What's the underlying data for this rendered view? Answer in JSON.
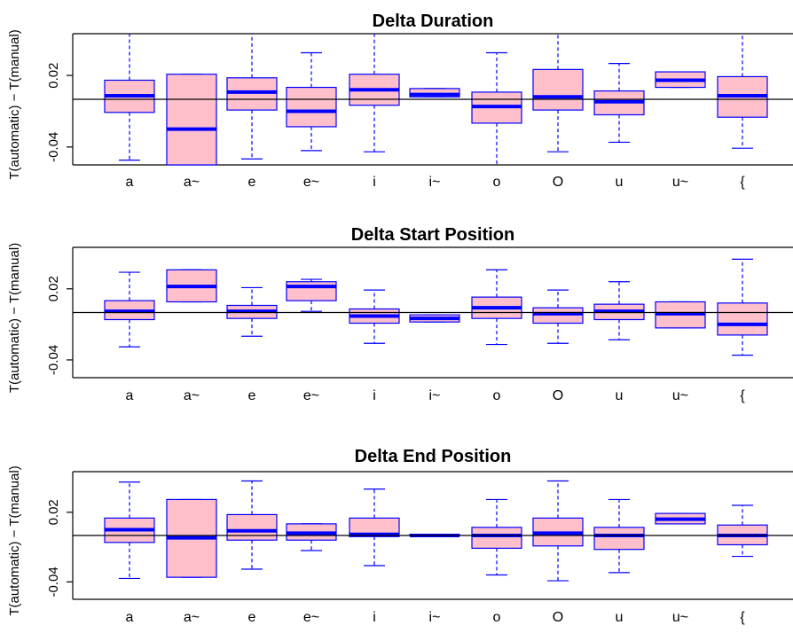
{
  "chart_data": [
    {
      "type": "boxplot",
      "title": "Delta Duration",
      "ylabel": "T(automatic) − T(manual)",
      "ylim": [
        -0.055,
        0.055
      ],
      "yticks": [
        -0.04,
        0.02
      ],
      "ytick_labels": [
        "-0.04",
        "0.02"
      ],
      "reference_line": 0,
      "colors": {
        "box_fill": "#ffc0cb",
        "box_stroke": "#0000ff",
        "median": "#0000ff"
      },
      "categories": [
        "a",
        "a~",
        "e",
        "e~",
        "i",
        "i~",
        "o",
        "O",
        "u",
        "u~",
        "{"
      ],
      "boxes": [
        {
          "whisker_low": -0.051,
          "q1": -0.011,
          "median": 0.003,
          "q3": 0.016,
          "whisker_high": 0.055
        },
        {
          "whisker_low": -0.055,
          "q1": -0.055,
          "median": -0.025,
          "q3": 0.021,
          "whisker_high": 0.021
        },
        {
          "whisker_low": -0.05,
          "q1": -0.009,
          "median": 0.006,
          "q3": 0.018,
          "whisker_high": 0.055
        },
        {
          "whisker_low": -0.043,
          "q1": -0.023,
          "median": -0.01,
          "q3": 0.01,
          "whisker_high": 0.039
        },
        {
          "whisker_low": -0.044,
          "q1": -0.005,
          "median": 0.008,
          "q3": 0.021,
          "whisker_high": 0.055
        },
        {
          "whisker_low": 0.002,
          "q1": 0.002,
          "median": 0.004,
          "q3": 0.009,
          "whisker_high": 0.009
        },
        {
          "whisker_low": -0.055,
          "q1": -0.02,
          "median": -0.006,
          "q3": 0.006,
          "whisker_high": 0.039
        },
        {
          "whisker_low": -0.044,
          "q1": -0.009,
          "median": 0.002,
          "q3": 0.025,
          "whisker_high": 0.055
        },
        {
          "whisker_low": -0.036,
          "q1": -0.013,
          "median": -0.002,
          "q3": 0.007,
          "whisker_high": 0.03
        },
        {
          "whisker_low": 0.01,
          "q1": 0.01,
          "median": 0.016,
          "q3": 0.023,
          "whisker_high": 0.023
        },
        {
          "whisker_low": -0.041,
          "q1": -0.015,
          "median": 0.003,
          "q3": 0.019,
          "whisker_high": 0.055
        }
      ]
    },
    {
      "type": "boxplot",
      "title": "Delta Start Position",
      "ylabel": "T(automatic) − T(manual)",
      "ylim": [
        -0.055,
        0.055
      ],
      "yticks": [
        -0.04,
        0.02
      ],
      "ytick_labels": [
        "-0.04",
        "0.02"
      ],
      "reference_line": 0,
      "colors": {
        "box_fill": "#ffc0cb",
        "box_stroke": "#0000ff",
        "median": "#0000ff"
      },
      "categories": [
        "a",
        "a~",
        "e",
        "e~",
        "i",
        "i~",
        "o",
        "O",
        "u",
        "u~",
        "{"
      ],
      "boxes": [
        {
          "whisker_low": -0.029,
          "q1": -0.006,
          "median": 0.001,
          "q3": 0.01,
          "whisker_high": 0.034
        },
        {
          "whisker_low": 0.009,
          "q1": 0.009,
          "median": 0.022,
          "q3": 0.036,
          "whisker_high": 0.036
        },
        {
          "whisker_low": -0.02,
          "q1": -0.005,
          "median": 0.001,
          "q3": 0.006,
          "whisker_high": 0.021
        },
        {
          "whisker_low": 0.001,
          "q1": 0.01,
          "median": 0.022,
          "q3": 0.026,
          "whisker_high": 0.028
        },
        {
          "whisker_low": -0.026,
          "q1": -0.009,
          "median": -0.003,
          "q3": 0.003,
          "whisker_high": 0.019
        },
        {
          "whisker_low": -0.008,
          "q1": -0.008,
          "median": -0.005,
          "q3": -0.002,
          "whisker_high": -0.002
        },
        {
          "whisker_low": -0.027,
          "q1": -0.005,
          "median": 0.004,
          "q3": 0.013,
          "whisker_high": 0.036
        },
        {
          "whisker_low": -0.026,
          "q1": -0.009,
          "median": -0.001,
          "q3": 0.004,
          "whisker_high": 0.019
        },
        {
          "whisker_low": -0.023,
          "q1": -0.006,
          "median": 0.001,
          "q3": 0.007,
          "whisker_high": 0.026
        },
        {
          "whisker_low": -0.013,
          "q1": -0.013,
          "median": -0.001,
          "q3": 0.009,
          "whisker_high": 0.009
        },
        {
          "whisker_low": -0.036,
          "q1": -0.019,
          "median": -0.01,
          "q3": 0.008,
          "whisker_high": 0.045
        }
      ]
    },
    {
      "type": "boxplot",
      "title": "Delta End Position",
      "ylabel": "T(automatic) − T(manual)",
      "ylim": [
        -0.055,
        0.055
      ],
      "yticks": [
        -0.04,
        0.02
      ],
      "ytick_labels": [
        "-0.04",
        "0.02"
      ],
      "reference_line": 0,
      "colors": {
        "box_fill": "#ffc0cb",
        "box_stroke": "#0000ff",
        "median": "#0000ff"
      },
      "categories": [
        "a",
        "a~",
        "e",
        "e~",
        "i",
        "i~",
        "o",
        "O",
        "u",
        "u~",
        "{"
      ],
      "boxes": [
        {
          "whisker_low": -0.037,
          "q1": -0.006,
          "median": 0.005,
          "q3": 0.015,
          "whisker_high": 0.046
        },
        {
          "whisker_low": -0.036,
          "q1": -0.036,
          "median": -0.002,
          "q3": 0.031,
          "whisker_high": 0.031
        },
        {
          "whisker_low": -0.029,
          "q1": -0.004,
          "median": 0.004,
          "q3": 0.018,
          "whisker_high": 0.047
        },
        {
          "whisker_low": -0.013,
          "q1": -0.004,
          "median": 0.002,
          "q3": 0.01,
          "whisker_high": 0.01
        },
        {
          "whisker_low": -0.026,
          "q1": -0.001,
          "median": 0.001,
          "q3": 0.015,
          "whisker_high": 0.04
        },
        {
          "whisker_low": 0.0,
          "q1": 0.0,
          "median": 0.0,
          "q3": 0.001,
          "whisker_high": 0.001
        },
        {
          "whisker_low": -0.034,
          "q1": -0.011,
          "median": 0.0,
          "q3": 0.007,
          "whisker_high": 0.031
        },
        {
          "whisker_low": -0.039,
          "q1": -0.009,
          "median": 0.002,
          "q3": 0.015,
          "whisker_high": 0.047
        },
        {
          "whisker_low": -0.032,
          "q1": -0.012,
          "median": 0.0,
          "q3": 0.007,
          "whisker_high": 0.031
        },
        {
          "whisker_low": 0.01,
          "q1": 0.01,
          "median": 0.014,
          "q3": 0.019,
          "whisker_high": 0.019
        },
        {
          "whisker_low": -0.018,
          "q1": -0.008,
          "median": 0.0,
          "q3": 0.009,
          "whisker_high": 0.026
        }
      ]
    }
  ]
}
